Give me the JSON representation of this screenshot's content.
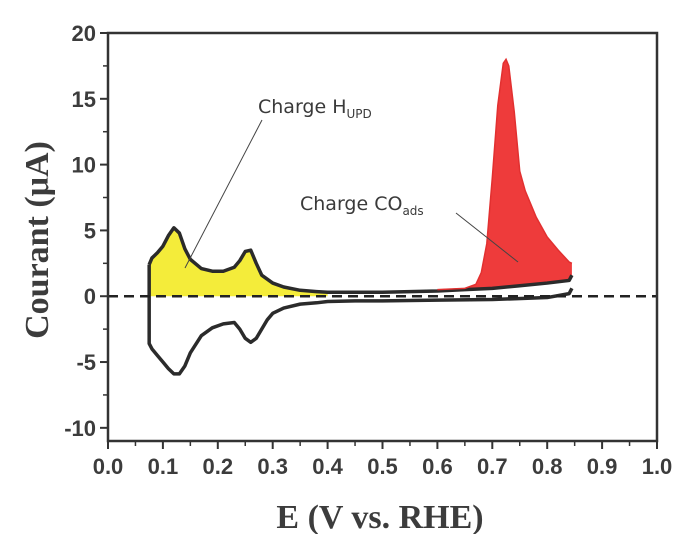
{
  "chart_data": {
    "type": "line",
    "xlabel": "E (V vs. RHE)",
    "ylabel": "Courant (μA)",
    "xlim": [
      0.0,
      1.0
    ],
    "ylim": [
      -11,
      20
    ],
    "xticks": [
      "0.0",
      "0.1",
      "0.2",
      "0.3",
      "0.4",
      "0.5",
      "0.6",
      "0.7",
      "0.8",
      "0.9",
      "1.0"
    ],
    "yticks": [
      "-10",
      "-5",
      "0",
      "5",
      "10",
      "15",
      "20"
    ],
    "baseline_y": 0,
    "series": [
      {
        "role": "anodic_scan",
        "x": [
          0.075,
          0.08,
          0.09,
          0.1,
          0.11,
          0.12,
          0.13,
          0.14,
          0.15,
          0.17,
          0.19,
          0.21,
          0.23,
          0.24,
          0.25,
          0.26,
          0.27,
          0.28,
          0.3,
          0.32,
          0.35,
          0.38,
          0.4,
          0.45,
          0.5,
          0.55,
          0.6,
          0.65,
          0.7,
          0.75,
          0.8,
          0.84,
          0.845
        ],
        "y": [
          2.4,
          2.9,
          3.3,
          3.8,
          4.6,
          5.2,
          4.8,
          3.6,
          2.8,
          2.1,
          1.9,
          1.9,
          2.2,
          2.7,
          3.4,
          3.5,
          2.5,
          1.6,
          1.0,
          0.7,
          0.45,
          0.35,
          0.3,
          0.3,
          0.3,
          0.35,
          0.4,
          0.5,
          0.6,
          0.8,
          1.0,
          1.2,
          1.6
        ]
      },
      {
        "role": "cathodic_scan",
        "x": [
          0.845,
          0.84,
          0.8,
          0.7,
          0.6,
          0.5,
          0.45,
          0.4,
          0.38,
          0.35,
          0.32,
          0.3,
          0.29,
          0.28,
          0.27,
          0.26,
          0.25,
          0.24,
          0.23,
          0.21,
          0.19,
          0.17,
          0.15,
          0.14,
          0.13,
          0.12,
          0.11,
          0.1,
          0.09,
          0.08,
          0.075,
          0.075
        ],
        "y": [
          0.6,
          0.2,
          -0.1,
          -0.25,
          -0.3,
          -0.35,
          -0.35,
          -0.4,
          -0.5,
          -0.6,
          -0.9,
          -1.3,
          -1.8,
          -2.5,
          -3.2,
          -3.5,
          -3.2,
          -2.5,
          -2.0,
          -2.1,
          -2.4,
          -3.0,
          -4.3,
          -5.3,
          -5.9,
          -5.9,
          -5.5,
          -5.0,
          -4.5,
          -4.0,
          -3.6,
          2.4
        ]
      },
      {
        "role": "co_stripping_peak",
        "x": [
          0.6,
          0.65,
          0.67,
          0.68,
          0.69,
          0.7,
          0.71,
          0.72,
          0.725,
          0.73,
          0.74,
          0.75,
          0.76,
          0.77,
          0.78,
          0.8,
          0.82,
          0.84,
          0.845
        ],
        "y": [
          0.5,
          0.6,
          0.9,
          1.8,
          4.0,
          9.0,
          14.5,
          17.7,
          18.0,
          17.5,
          14.0,
          9.5,
          8.0,
          7.0,
          6.0,
          4.5,
          3.5,
          2.6,
          2.5
        ]
      }
    ],
    "fills": [
      {
        "label": "Charge H_UPD",
        "color": "#f4ec3a",
        "x_range": [
          0.075,
          0.4
        ]
      },
      {
        "label": "Charge CO_ads",
        "color": "#ee3b3b",
        "x_range": [
          0.6,
          0.845
        ]
      }
    ],
    "annotations": [
      {
        "text": "Charge H",
        "sub": "UPD"
      },
      {
        "text": "Charge CO",
        "sub": "ads"
      }
    ],
    "grid": false,
    "legend": "none",
    "colors": {
      "line": "#2b2b2b",
      "axis": "#333333",
      "hupd_fill": "#f4ec3a",
      "co_fill": "#ee3b3b"
    }
  }
}
